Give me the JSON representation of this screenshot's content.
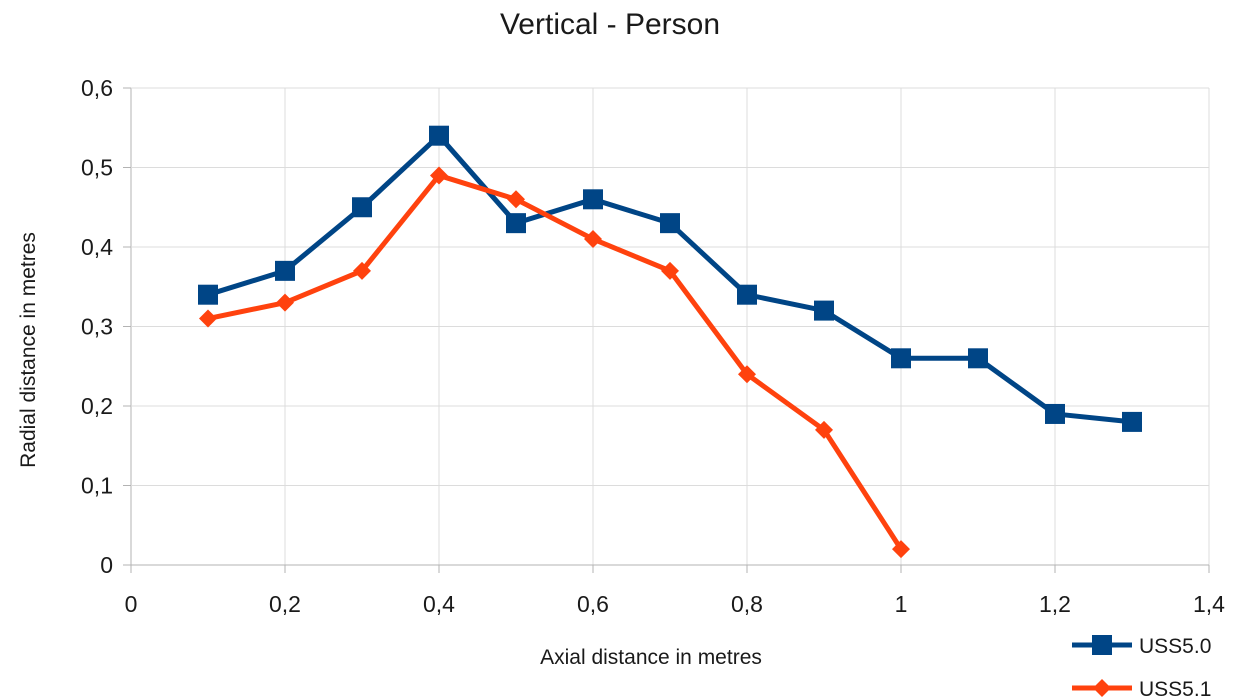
{
  "chart_data": {
    "type": "line",
    "title": "Vertical - Person",
    "xlabel": "Axial distance in metres",
    "ylabel": "Radial distance in metres",
    "xlim": [
      0,
      1.4
    ],
    "ylim": [
      0,
      0.6
    ],
    "x_ticks": [
      "0",
      "0,2",
      "0,4",
      "0,6",
      "0,8",
      "1",
      "1,2",
      "1,4"
    ],
    "y_ticks": [
      "0",
      "0,1",
      "0,2",
      "0,3",
      "0,4",
      "0,5",
      "0,6"
    ],
    "grid": true,
    "legend_position": "bottom-right",
    "series": [
      {
        "name": "USS5.0",
        "color": "#004586",
        "marker": "square",
        "x": [
          0.1,
          0.2,
          0.3,
          0.4,
          0.5,
          0.6,
          0.7,
          0.8,
          0.9,
          1.0,
          1.1,
          1.2,
          1.3
        ],
        "y": [
          0.34,
          0.37,
          0.45,
          0.54,
          0.43,
          0.46,
          0.43,
          0.34,
          0.32,
          0.26,
          0.26,
          0.19,
          0.18
        ]
      },
      {
        "name": "USS5.1",
        "color": "#ff420e",
        "marker": "diamond",
        "x": [
          0.1,
          0.2,
          0.3,
          0.4,
          0.5,
          0.6,
          0.7,
          0.8,
          0.9,
          1.0
        ],
        "y": [
          0.31,
          0.33,
          0.37,
          0.49,
          0.46,
          0.41,
          0.37,
          0.24,
          0.17,
          0.02
        ]
      }
    ]
  }
}
